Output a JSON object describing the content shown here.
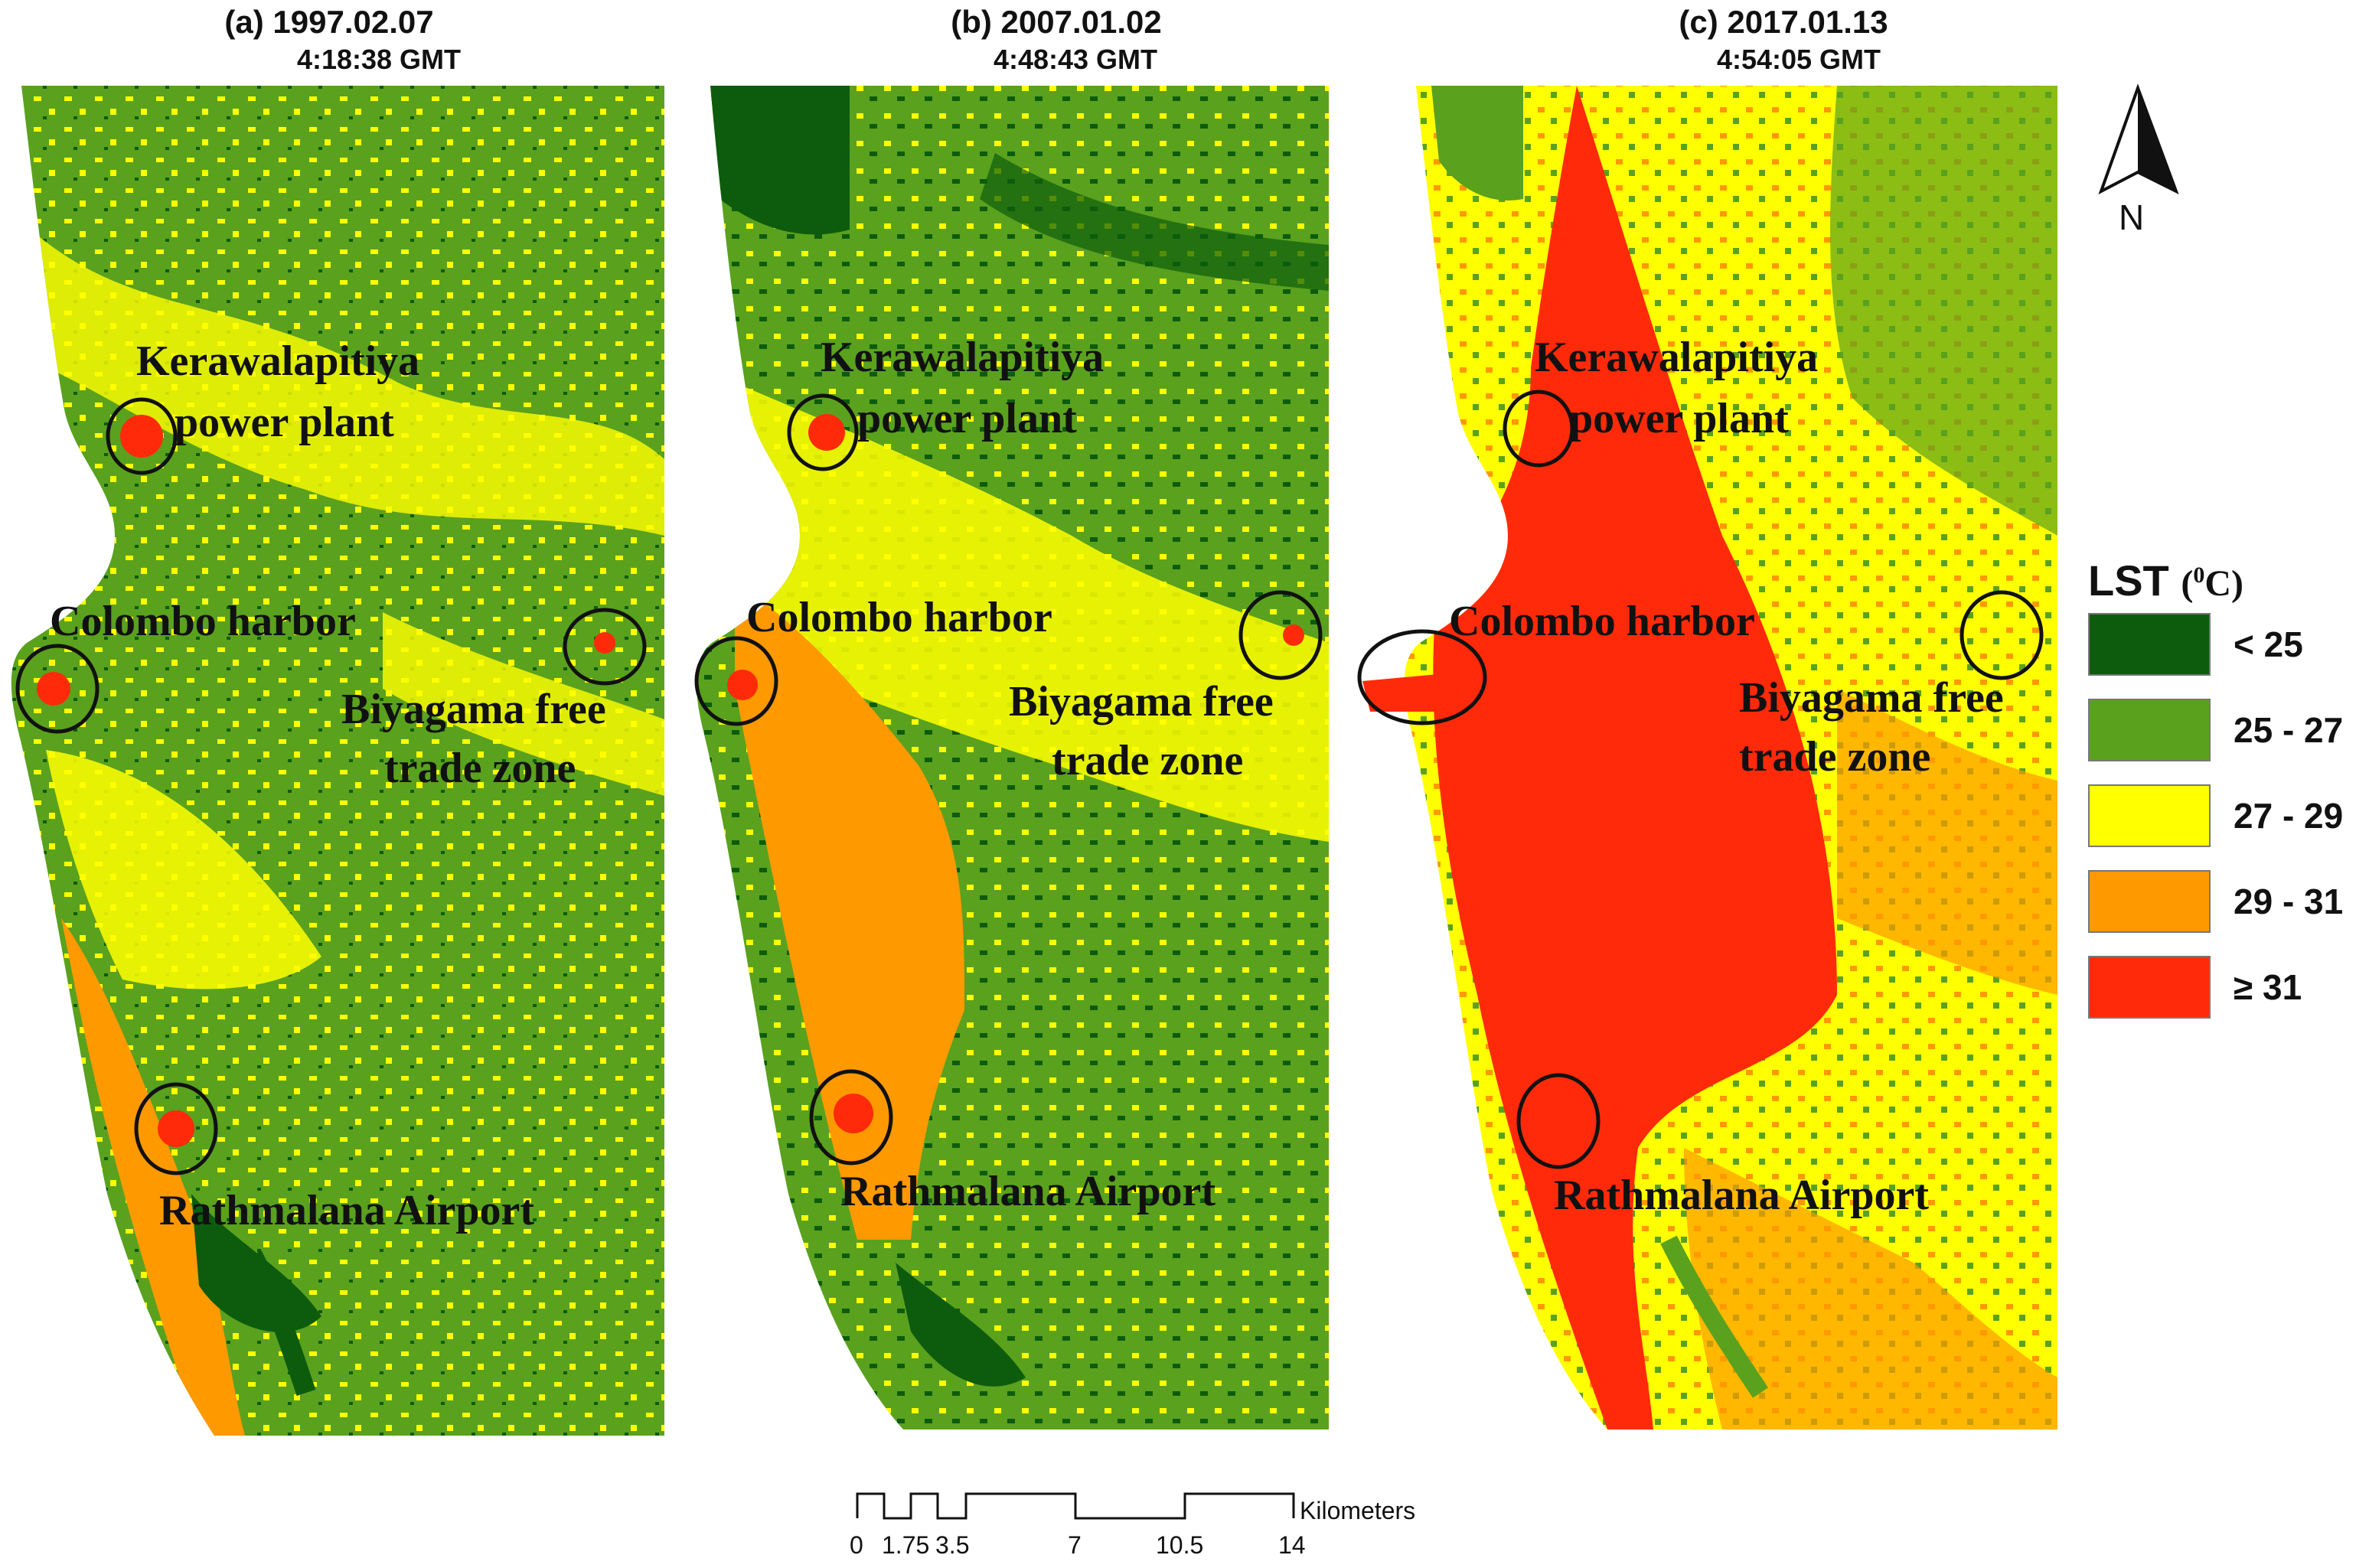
{
  "panels": [
    {
      "id": "a",
      "date": "(a) 1997.02.07",
      "time": "4:18:38 GMT"
    },
    {
      "id": "b",
      "date": "(b) 2007.01.02",
      "time": "4:48:43 GMT"
    },
    {
      "id": "c",
      "date": "(c) 2017.01.13",
      "time": "4:54:05 GMT"
    }
  ],
  "places": {
    "kerawalapitiya_1": "Kerawalapitiya",
    "kerawalapitiya_2": "power plant",
    "colombo": "Colombo harbor",
    "biyagama_1": "Biyagama free",
    "biyagama_2": "trade zone",
    "rathmalana": "Rathmalana Airport"
  },
  "legend": {
    "title": "LST",
    "unit_prefix": "(",
    "unit_sup": "0",
    "unit_suffix": "C)",
    "classes": [
      {
        "label": "< 25",
        "color": "#0d5c0d"
      },
      {
        "label": "25 - 27",
        "color": "#5aa11e"
      },
      {
        "label": "27 - 29",
        "color": "#ffff00"
      },
      {
        "label": "29 - 31",
        "color": "#ff9900"
      },
      {
        "label": "≥ 31",
        "color": "#ff2a0a"
      }
    ]
  },
  "north_arrow": {
    "label": "N",
    "icon": "north-arrow-icon"
  },
  "scale_bar": {
    "unit": "Kilometers",
    "ticks": [
      "0",
      "1.75",
      "3.5",
      "7",
      "10.5",
      "14"
    ]
  }
}
